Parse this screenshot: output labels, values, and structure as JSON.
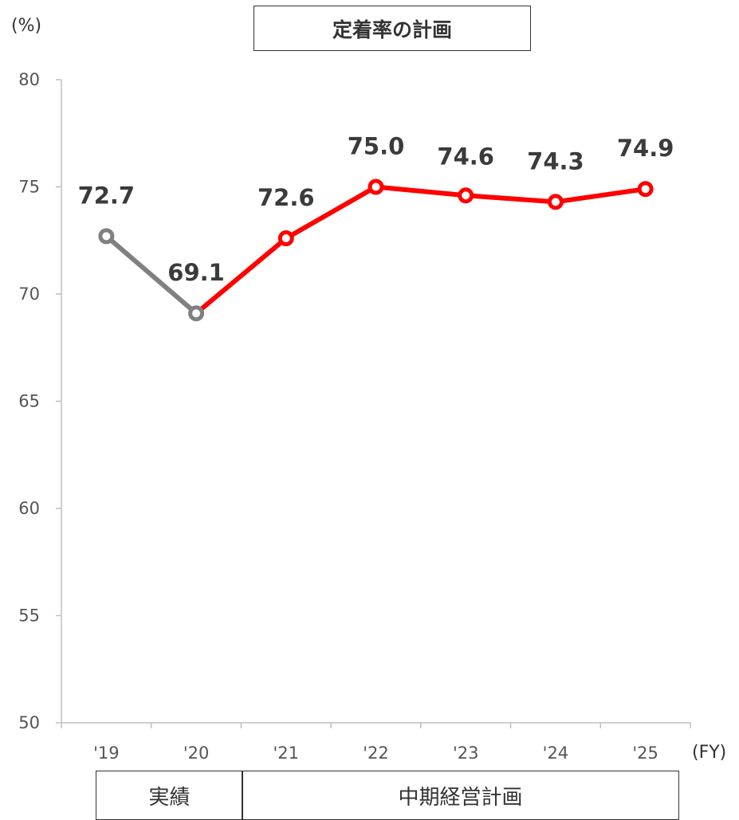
{
  "chart_data": {
    "type": "line",
    "title": "定着率の計画",
    "ylabel": "(%)",
    "xlabel": "(FY)",
    "ylim": [
      50,
      80
    ],
    "yticks": [
      50,
      55,
      60,
      65,
      70,
      75,
      80
    ],
    "categories": [
      "'19",
      "'20",
      "'21",
      "'22",
      "'23",
      "'24",
      "'25"
    ],
    "values": [
      72.7,
      69.1,
      72.6,
      75.0,
      74.6,
      74.3,
      74.9
    ],
    "value_labels": [
      "72.7",
      "69.1",
      "72.6",
      "75.0",
      "74.6",
      "74.3",
      "74.9"
    ],
    "segments": [
      {
        "from": 0,
        "to": 1,
        "color": "#808080"
      },
      {
        "from": 1,
        "to": 6,
        "color": "#ff0000"
      }
    ],
    "marker_colors": [
      "#808080",
      "#808080",
      "#ff0000",
      "#ff0000",
      "#ff0000",
      "#ff0000",
      "#ff0000"
    ],
    "grid": false,
    "periods": [
      {
        "label": "実績",
        "span": [
          "'19",
          "'20"
        ]
      },
      {
        "label": "中期経営計画",
        "span": [
          "'21",
          "'25"
        ]
      }
    ]
  }
}
